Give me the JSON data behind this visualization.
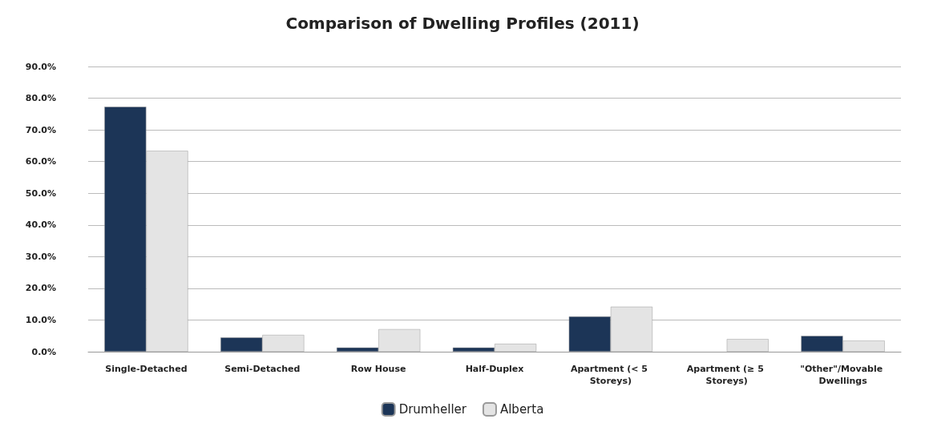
{
  "chart_data": {
    "type": "bar",
    "title": "Comparison of Dwelling Profiles (2011)",
    "categories": [
      "Single-Detached",
      "Semi-Detached",
      "Row House",
      "Half-Duplex",
      "Apartment (< 5 Storeys)",
      "Apartment (≥ 5 Storeys)",
      "\"Other\"/Movable Dwellings"
    ],
    "series": [
      {
        "name": "Drumheller",
        "color": "#1c3557",
        "values": [
          77.3,
          4.5,
          1.3,
          1.3,
          11.1,
          null,
          5.0
        ]
      },
      {
        "name": "Alberta",
        "color": "#e4e4e4",
        "values": [
          63.4,
          5.3,
          7.1,
          2.5,
          14.2,
          4.0,
          3.5
        ]
      }
    ],
    "ylim": [
      0,
      90
    ],
    "yticks": [
      {
        "value": 0,
        "label": "0.0%"
      },
      {
        "value": 10,
        "label": "10.0%"
      },
      {
        "value": 20,
        "label": "20.0%"
      },
      {
        "value": 30,
        "label": "30.0%"
      },
      {
        "value": 40,
        "label": "40.0%"
      },
      {
        "value": 50,
        "label": "50.0%"
      },
      {
        "value": 60,
        "label": "60.0%"
      },
      {
        "value": 70,
        "label": "70.0%"
      },
      {
        "value": 80,
        "label": "80.0%"
      },
      {
        "value": 90,
        "label": "90.0%"
      }
    ],
    "grid": "y",
    "legend": "bottom"
  }
}
